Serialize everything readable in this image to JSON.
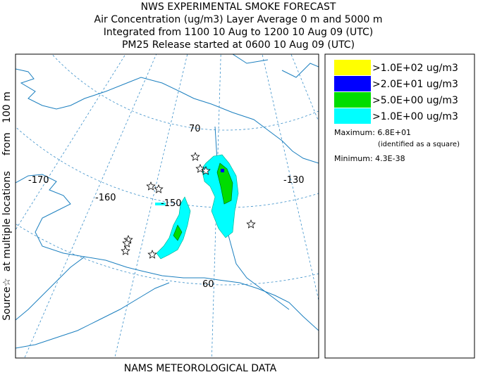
{
  "header": {
    "lines": [
      "NWS EXPERIMENTAL SMOKE FORECAST",
      "Air Concentration (ug/m3) Layer Average    0 m and  5000 m",
      "Integrated from 1100 10 Aug to 1200 10 Aug 09 (UTC)",
      "PM25 Release started at 0600 10 Aug 09 (UTC)"
    ]
  },
  "side_label": "Source☆  at multiple locations     from   100 m",
  "footer": "NAMS METEOROLOGICAL DATA",
  "legend": {
    "items": [
      {
        "label": ">1.0E+02 ug/m3",
        "color": "#ffff00"
      },
      {
        "label": ">2.0E+01 ug/m3",
        "color": "#0000ff"
      },
      {
        "label": ">5.0E+00 ug/m3",
        "color": "#00dd00"
      },
      {
        "label": ">1.0E+00 ug/m3",
        "color": "#00ffff"
      }
    ],
    "maximum": "Maximum: 6.8E+01",
    "maximum_note": "(identified as a square)",
    "minimum": "Minimum: 4.3E-38"
  },
  "map": {
    "labels": [
      "-170",
      "-160",
      "-150",
      "-130",
      "70",
      "60"
    ]
  }
}
